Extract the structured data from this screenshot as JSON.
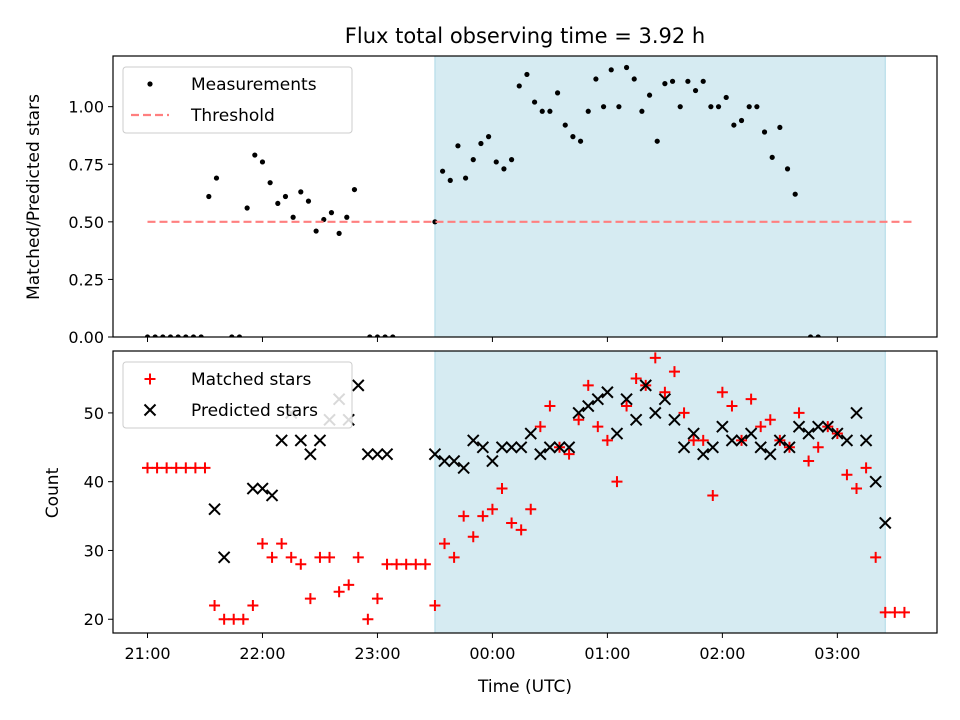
{
  "chart_data": [
    {
      "type": "scatter",
      "title": "Flux total observing time = 3.92 h",
      "xlabel": "",
      "ylabel": "Matched/Predicted stars",
      "xlim": [
        "20:42",
        "03:52"
      ],
      "ylim": [
        0,
        1.22
      ],
      "x_ticks": [
        "21:00",
        "22:00",
        "23:00",
        "00:00",
        "01:00",
        "02:00",
        "03:00"
      ],
      "y_ticks": [
        "0.00",
        "0.25",
        "0.50",
        "0.75",
        "1.00"
      ],
      "shaded_interval": [
        "23:30",
        "03:25"
      ],
      "legend_position": "upper left",
      "series": [
        {
          "name": "Measurements",
          "color": "#000000",
          "marker": "dot",
          "points": [
            [
              "21:00",
              0
            ],
            [
              "21:04",
              0
            ],
            [
              "21:08",
              0
            ],
            [
              "21:12",
              0
            ],
            [
              "21:16",
              0
            ],
            [
              "21:20",
              0
            ],
            [
              "21:24",
              0
            ],
            [
              "21:28",
              0
            ],
            [
              "21:32",
              0.61
            ],
            [
              "21:36",
              0.69
            ],
            [
              "21:44",
              0
            ],
            [
              "21:48",
              0
            ],
            [
              "21:52",
              0.56
            ],
            [
              "21:56",
              0.79
            ],
            [
              "22:00",
              0.76
            ],
            [
              "22:04",
              0.67
            ],
            [
              "22:08",
              0.58
            ],
            [
              "22:12",
              0.61
            ],
            [
              "22:16",
              0.52
            ],
            [
              "22:20",
              0.63
            ],
            [
              "22:24",
              0.59
            ],
            [
              "22:28",
              0.46
            ],
            [
              "22:32",
              0.51
            ],
            [
              "22:36",
              0.54
            ],
            [
              "22:40",
              0.45
            ],
            [
              "22:44",
              0.52
            ],
            [
              "22:48",
              0.64
            ],
            [
              "22:56",
              0
            ],
            [
              "23:00",
              0
            ],
            [
              "23:04",
              0
            ],
            [
              "23:08",
              0
            ],
            [
              "23:30",
              0.5
            ],
            [
              "23:34",
              0.72
            ],
            [
              "23:38",
              0.68
            ],
            [
              "23:42",
              0.83
            ],
            [
              "23:46",
              0.69
            ],
            [
              "23:50",
              0.77
            ],
            [
              "23:54",
              0.84
            ],
            [
              "23:58",
              0.87
            ],
            [
              "00:02",
              0.76
            ],
            [
              "00:06",
              0.73
            ],
            [
              "00:10",
              0.77
            ],
            [
              "00:14",
              1.09
            ],
            [
              "00:18",
              1.14
            ],
            [
              "00:22",
              1.02
            ],
            [
              "00:26",
              0.98
            ],
            [
              "00:30",
              0.98
            ],
            [
              "00:34",
              1.06
            ],
            [
              "00:38",
              0.92
            ],
            [
              "00:42",
              0.87
            ],
            [
              "00:46",
              0.85
            ],
            [
              "00:50",
              0.98
            ],
            [
              "00:54",
              1.12
            ],
            [
              "00:58",
              1.0
            ],
            [
              "01:02",
              1.16
            ],
            [
              "01:06",
              1.0
            ],
            [
              "01:10",
              1.17
            ],
            [
              "01:14",
              1.12
            ],
            [
              "01:18",
              0.98
            ],
            [
              "01:22",
              1.05
            ],
            [
              "01:26",
              0.85
            ],
            [
              "01:30",
              1.1
            ],
            [
              "01:34",
              1.11
            ],
            [
              "01:38",
              1.0
            ],
            [
              "01:42",
              1.11
            ],
            [
              "01:46",
              1.07
            ],
            [
              "01:50",
              1.11
            ],
            [
              "01:54",
              1.0
            ],
            [
              "01:58",
              1.0
            ],
            [
              "02:02",
              1.04
            ],
            [
              "02:06",
              0.92
            ],
            [
              "02:10",
              0.94
            ],
            [
              "02:14",
              1.0
            ],
            [
              "02:18",
              1.0
            ],
            [
              "02:22",
              0.89
            ],
            [
              "02:26",
              0.78
            ],
            [
              "02:30",
              0.91
            ],
            [
              "02:34",
              0.73
            ],
            [
              "02:38",
              0.62
            ],
            [
              "02:46",
              0
            ],
            [
              "02:50",
              0
            ]
          ]
        },
        {
          "name": "Threshold",
          "color": "#ff7f7f",
          "style": "dashed",
          "points": [
            [
              "21:00",
              0.5
            ],
            [
              "03:40",
              0.5
            ]
          ]
        }
      ]
    },
    {
      "type": "scatter",
      "title": "",
      "xlabel": "Time (UTC)",
      "ylabel": "Count",
      "xlim": [
        "20:42",
        "03:52"
      ],
      "ylim": [
        18,
        59
      ],
      "x_ticks": [
        "21:00",
        "22:00",
        "23:00",
        "00:00",
        "01:00",
        "02:00",
        "03:00"
      ],
      "y_ticks": [
        "20",
        "30",
        "40",
        "50"
      ],
      "shaded_interval": [
        "23:30",
        "03:25"
      ],
      "legend_position": "upper left",
      "series": [
        {
          "name": "Matched stars",
          "color": "#ff0000",
          "marker": "plus",
          "points": [
            [
              "21:00",
              42
            ],
            [
              "21:05",
              42
            ],
            [
              "21:10",
              42
            ],
            [
              "21:15",
              42
            ],
            [
              "21:20",
              42
            ],
            [
              "21:25",
              42
            ],
            [
              "21:30",
              42
            ],
            [
              "21:35",
              22
            ],
            [
              "21:40",
              20
            ],
            [
              "21:45",
              20
            ],
            [
              "21:50",
              20
            ],
            [
              "21:55",
              22
            ],
            [
              "22:00",
              31
            ],
            [
              "22:05",
              29
            ],
            [
              "22:10",
              31
            ],
            [
              "22:15",
              29
            ],
            [
              "22:20",
              28
            ],
            [
              "22:25",
              23
            ],
            [
              "22:30",
              29
            ],
            [
              "22:35",
              29
            ],
            [
              "22:40",
              24
            ],
            [
              "22:45",
              25
            ],
            [
              "22:50",
              29
            ],
            [
              "22:55",
              20
            ],
            [
              "23:00",
              23
            ],
            [
              "23:05",
              28
            ],
            [
              "23:10",
              28
            ],
            [
              "23:15",
              28
            ],
            [
              "23:20",
              28
            ],
            [
              "23:25",
              28
            ],
            [
              "23:30",
              22
            ],
            [
              "23:35",
              31
            ],
            [
              "23:40",
              29
            ],
            [
              "23:45",
              35
            ],
            [
              "23:50",
              32
            ],
            [
              "23:55",
              35
            ],
            [
              "00:00",
              36
            ],
            [
              "00:05",
              39
            ],
            [
              "00:10",
              34
            ],
            [
              "00:15",
              33
            ],
            [
              "00:20",
              36
            ],
            [
              "00:25",
              48
            ],
            [
              "00:30",
              51
            ],
            [
              "00:35",
              45
            ],
            [
              "00:40",
              44
            ],
            [
              "00:45",
              49
            ],
            [
              "00:50",
              54
            ],
            [
              "00:55",
              48
            ],
            [
              "01:00",
              46
            ],
            [
              "01:05",
              40
            ],
            [
              "01:10",
              51
            ],
            [
              "01:15",
              55
            ],
            [
              "01:20",
              54
            ],
            [
              "01:25",
              58
            ],
            [
              "01:30",
              53
            ],
            [
              "01:35",
              56
            ],
            [
              "01:40",
              50
            ],
            [
              "01:45",
              46
            ],
            [
              "01:50",
              46
            ],
            [
              "01:55",
              38
            ],
            [
              "02:00",
              53
            ],
            [
              "02:05",
              51
            ],
            [
              "02:10",
              46
            ],
            [
              "02:15",
              52
            ],
            [
              "02:20",
              48
            ],
            [
              "02:25",
              49
            ],
            [
              "02:30",
              46
            ],
            [
              "02:35",
              45
            ],
            [
              "02:40",
              50
            ],
            [
              "02:45",
              43
            ],
            [
              "02:50",
              45
            ],
            [
              "02:55",
              48
            ],
            [
              "03:00",
              47
            ],
            [
              "03:05",
              41
            ],
            [
              "03:10",
              39
            ],
            [
              "03:15",
              42
            ],
            [
              "03:20",
              29
            ],
            [
              "03:25",
              21
            ],
            [
              "03:30",
              21
            ],
            [
              "03:35",
              21
            ]
          ]
        },
        {
          "name": "Predicted stars",
          "color": "#000000",
          "marker": "x",
          "points": [
            [
              "21:35",
              36
            ],
            [
              "21:40",
              29
            ],
            [
              "21:55",
              39
            ],
            [
              "22:00",
              39
            ],
            [
              "22:05",
              38
            ],
            [
              "22:10",
              46
            ],
            [
              "22:15",
              50
            ],
            [
              "22:20",
              46
            ],
            [
              "22:25",
              44
            ],
            [
              "22:30",
              46
            ],
            [
              "22:35",
              49
            ],
            [
              "22:40",
              52
            ],
            [
              "22:45",
              49
            ],
            [
              "22:50",
              54
            ],
            [
              "22:55",
              44
            ],
            [
              "23:00",
              44
            ],
            [
              "23:05",
              44
            ],
            [
              "23:30",
              44
            ],
            [
              "23:35",
              43
            ],
            [
              "23:40",
              43
            ],
            [
              "23:45",
              42
            ],
            [
              "23:50",
              46
            ],
            [
              "23:55",
              45
            ],
            [
              "00:00",
              43
            ],
            [
              "00:05",
              45
            ],
            [
              "00:10",
              45
            ],
            [
              "00:15",
              45
            ],
            [
              "00:20",
              47
            ],
            [
              "00:25",
              44
            ],
            [
              "00:30",
              45
            ],
            [
              "00:35",
              45
            ],
            [
              "00:40",
              45
            ],
            [
              "00:45",
              50
            ],
            [
              "00:50",
              51
            ],
            [
              "00:55",
              52
            ],
            [
              "01:00",
              53
            ],
            [
              "01:05",
              47
            ],
            [
              "01:10",
              52
            ],
            [
              "01:15",
              49
            ],
            [
              "01:20",
              54
            ],
            [
              "01:25",
              50
            ],
            [
              "01:30",
              52
            ],
            [
              "01:35",
              49
            ],
            [
              "01:40",
              45
            ],
            [
              "01:45",
              47
            ],
            [
              "01:50",
              44
            ],
            [
              "01:55",
              45
            ],
            [
              "02:00",
              48
            ],
            [
              "02:05",
              46
            ],
            [
              "02:10",
              46
            ],
            [
              "02:15",
              47
            ],
            [
              "02:20",
              45
            ],
            [
              "02:25",
              44
            ],
            [
              "02:30",
              46
            ],
            [
              "02:35",
              45
            ],
            [
              "02:40",
              48
            ],
            [
              "02:45",
              47
            ],
            [
              "02:50",
              48
            ],
            [
              "02:55",
              48
            ],
            [
              "03:00",
              47
            ],
            [
              "03:05",
              46
            ],
            [
              "03:10",
              50
            ],
            [
              "03:15",
              46
            ],
            [
              "03:20",
              40
            ],
            [
              "03:25",
              34
            ]
          ]
        }
      ]
    }
  ]
}
